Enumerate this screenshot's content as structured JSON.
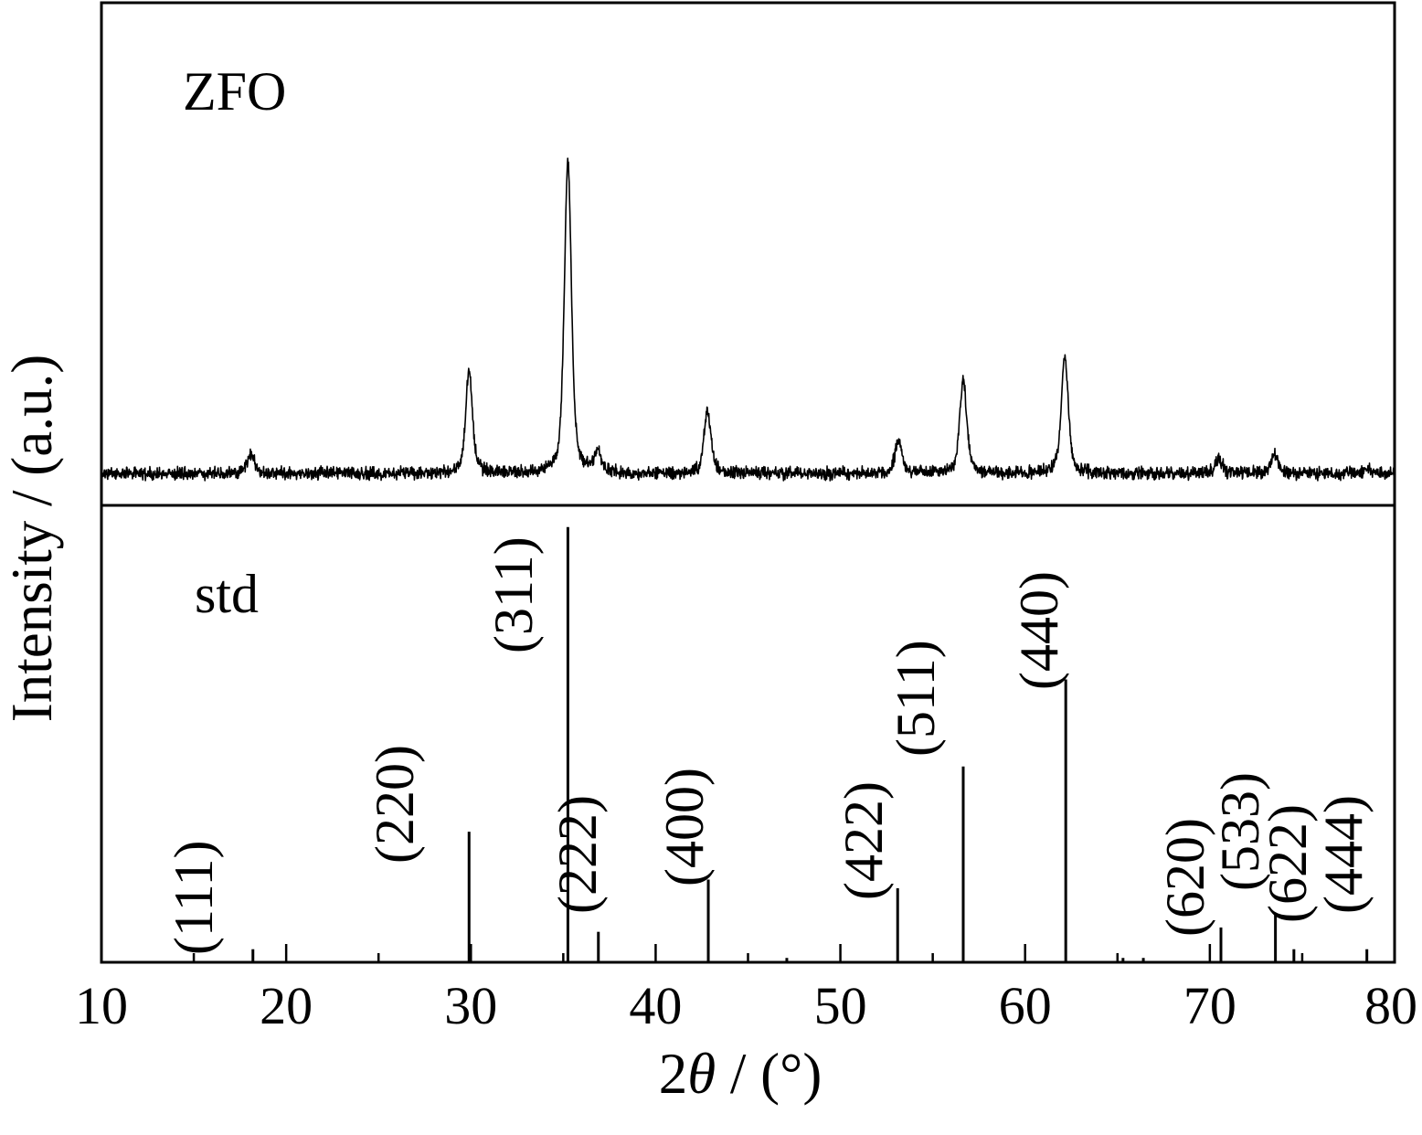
{
  "chart_data": {
    "type": "line",
    "xlabel": "2θ / (°)",
    "ylabel": "Intensity / (a.u.)",
    "xlim": [
      10,
      80
    ],
    "x_ticks": [
      10,
      20,
      30,
      40,
      50,
      60,
      70,
      80
    ],
    "x_minor_ticks": [
      15,
      25,
      35,
      45,
      55,
      65,
      75
    ],
    "grid": false,
    "panels": [
      {
        "label": "ZFO",
        "type": "line",
        "ylim": [
          0,
          142
        ],
        "series": {
          "background": 9,
          "peaks": [
            {
              "two_theta": 18.1,
              "intensity": 14.5
            },
            {
              "two_theta": 29.9,
              "intensity": 37.5
            },
            {
              "two_theta": 35.25,
              "intensity": 98
            },
            {
              "two_theta": 36.85,
              "intensity": 15
            },
            {
              "two_theta": 42.8,
              "intensity": 27
            },
            {
              "two_theta": 53.15,
              "intensity": 18.5
            },
            {
              "two_theta": 56.65,
              "intensity": 35.5
            },
            {
              "two_theta": 62.15,
              "intensity": 42
            },
            {
              "two_theta": 70.5,
              "intensity": 13
            },
            {
              "two_theta": 73.5,
              "intensity": 14.5
            },
            {
              "two_theta": 78.5,
              "intensity": 10.5
            }
          ]
        }
      },
      {
        "label": "std",
        "type": "bar",
        "ylim": [
          0,
          105
        ],
        "lines": [
          {
            "hkl": "(111)",
            "two_theta": 18.2,
            "intensity": 3
          },
          {
            "hkl": "(220)",
            "two_theta": 29.9,
            "intensity": 30
          },
          {
            "hkl": "(311)",
            "two_theta": 35.25,
            "intensity": 100
          },
          {
            "hkl": "(222)",
            "two_theta": 36.9,
            "intensity": 7
          },
          {
            "hkl": "(400)",
            "two_theta": 42.85,
            "intensity": 19
          },
          {
            "hkl": "(422)",
            "two_theta": 53.1,
            "intensity": 17
          },
          {
            "hkl": "(511)",
            "two_theta": 56.65,
            "intensity": 45
          },
          {
            "hkl": "(440)",
            "two_theta": 62.2,
            "intensity": 65
          },
          {
            "hkl": "(620)",
            "two_theta": 70.6,
            "intensity": 8
          },
          {
            "hkl": "(533)",
            "two_theta": 73.55,
            "intensity": 11
          },
          {
            "hkl": "(622)",
            "two_theta": 74.55,
            "intensity": 3
          },
          {
            "hkl": "(444)",
            "two_theta": 78.5,
            "intensity": 3
          },
          {
            "two_theta": 47.1,
            "intensity": 1
          },
          {
            "two_theta": 65.3,
            "intensity": 1
          },
          {
            "two_theta": 66.4,
            "intensity": 1
          }
        ]
      }
    ]
  }
}
